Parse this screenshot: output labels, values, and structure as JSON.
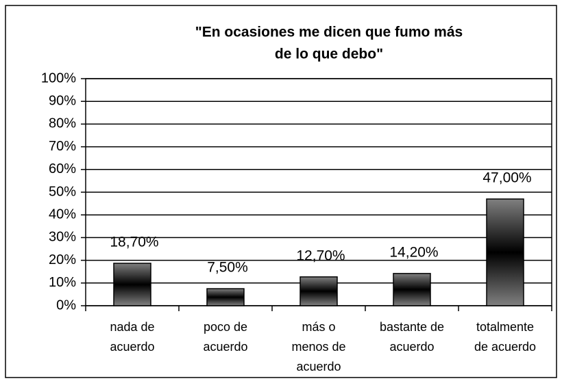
{
  "chart_data": {
    "type": "bar",
    "title": [
      "\"En ocasiones me dicen que fumo más",
      "de lo que debo\""
    ],
    "categories": [
      [
        "nada de",
        "acuerdo"
      ],
      [
        "poco de",
        "acuerdo"
      ],
      [
        "más o",
        "menos de",
        "acuerdo"
      ],
      [
        "bastante de",
        "acuerdo"
      ],
      [
        "totalmente",
        "de acuerdo"
      ]
    ],
    "values": [
      18.7,
      7.5,
      12.7,
      14.2,
      47.0
    ],
    "value_labels": [
      "18,70%",
      "7,50%",
      "12,70%",
      "14,20%",
      "47,00%"
    ],
    "color": "#808080",
    "ylim": [
      0,
      100
    ],
    "yticks": [
      {
        "value": 0,
        "label": "0%"
      },
      {
        "value": 10,
        "label": "10%"
      },
      {
        "value": 20,
        "label": "20%"
      },
      {
        "value": 30,
        "label": "30%"
      },
      {
        "value": 40,
        "label": "40%"
      },
      {
        "value": 50,
        "label": "50%"
      },
      {
        "value": 60,
        "label": "60%"
      },
      {
        "value": 70,
        "label": "70%"
      },
      {
        "value": 80,
        "label": "80%"
      },
      {
        "value": 90,
        "label": "90%"
      },
      {
        "value": 100,
        "label": "100%"
      }
    ],
    "grid": true
  }
}
